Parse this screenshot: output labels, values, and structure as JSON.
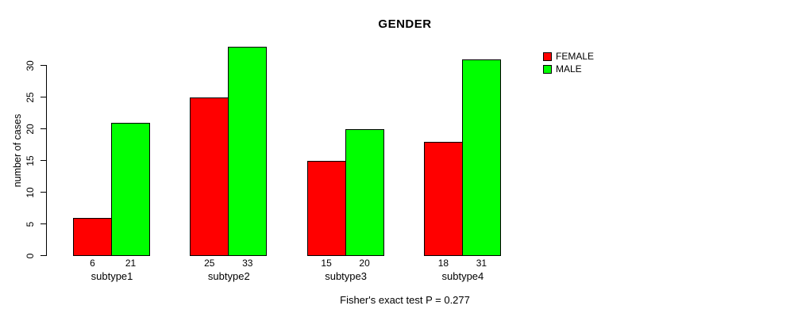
{
  "chart_data": {
    "type": "bar",
    "title": "GENDER",
    "ylabel": "number of cases",
    "xlabel": "",
    "footnote": "Fisher's exact test P = 0.277",
    "categories": [
      "subtype1",
      "subtype2",
      "subtype3",
      "subtype4"
    ],
    "series": [
      {
        "name": "FEMALE",
        "color": "#FF0000",
        "values": [
          6,
          25,
          15,
          18
        ]
      },
      {
        "name": "MALE",
        "color": "#00FF00",
        "values": [
          21,
          33,
          20,
          31
        ]
      }
    ],
    "value_labels_shown": true,
    "yticks": [
      0,
      5,
      10,
      15,
      20,
      25,
      30
    ],
    "ylim": [
      0,
      33
    ],
    "grid": false,
    "legend_position": "top-right",
    "background_color": "#FFFFFF",
    "axis_color": "#000000",
    "text_color": "#000000"
  }
}
